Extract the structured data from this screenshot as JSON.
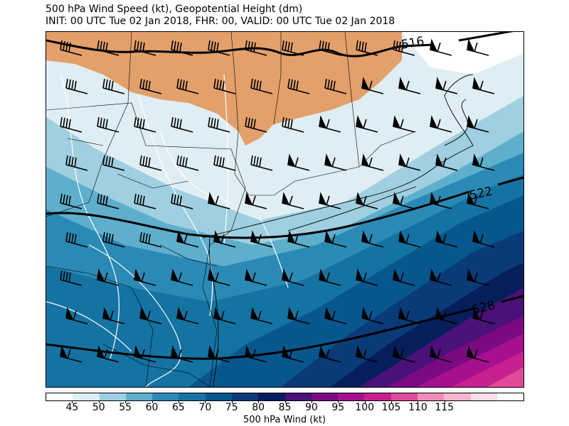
{
  "title_line1": "500 hPa Wind Speed (kt), Geopotential Height (dm)",
  "title_line2": "INIT: 00 UTC Tue 02 Jan 2018, FHR: 00, VALID: 00 UTC Tue 02 Jan 2018",
  "contours": [
    {
      "label": "516"
    },
    {
      "label": "522"
    },
    {
      "label": "528"
    }
  ],
  "colorbar": {
    "label": "500 hPa Wind (kt)",
    "ticks": [
      "45",
      "50",
      "55",
      "60",
      "65",
      "70",
      "75",
      "80",
      "85",
      "90",
      "95",
      "100",
      "105",
      "110",
      "115"
    ],
    "colors": [
      "#ffffff",
      "#dfeef4",
      "#9fcfe0",
      "#5eafcc",
      "#2b8ab5",
      "#1473a2",
      "#07578e",
      "#0a3a78",
      "#061f5c",
      "#4a1178",
      "#7b0a82",
      "#a6108e",
      "#c8218f",
      "#e04a9a",
      "#f08cb8",
      "#f7b6cf",
      "#fcdde8",
      "#ffffff"
    ]
  },
  "map_colors": {
    "land_low": "#e3a06a",
    "river": "#ffffff",
    "boundary": "#000000"
  }
}
